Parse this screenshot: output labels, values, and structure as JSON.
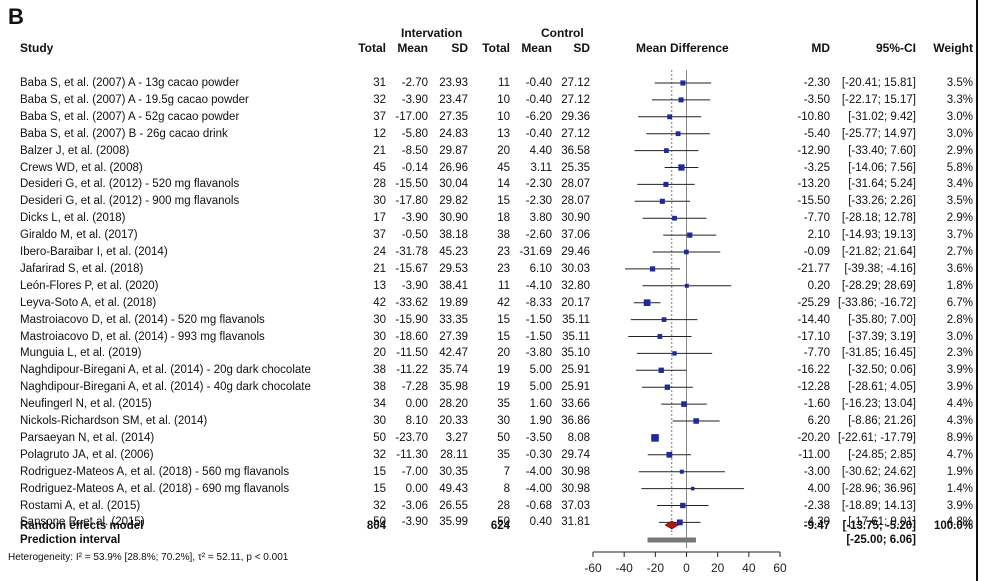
{
  "panel_label": "B",
  "headers": {
    "group_intervention": "Intervation",
    "group_control": "Control",
    "study": "Study",
    "total": "Total",
    "mean": "Mean",
    "sd": "SD",
    "total2": "Total",
    "mean2": "Mean",
    "sd2": "SD",
    "mean_difference": "Mean Difference",
    "md": "MD",
    "ci": "95%-CI",
    "weight": "Weight"
  },
  "rows": [
    {
      "study": "Baba S, et al. (2007) A - 13g cacao powder",
      "it": "31",
      "im": "-2.70",
      "isd": "23.93",
      "ct": "11",
      "cm": "-0.40",
      "csd": "27.12",
      "md": "-2.30",
      "ci": "[-20.41; 15.81]",
      "w": "3.5%",
      "mdv": -2.3,
      "lo": -20.41,
      "hi": 15.81,
      "wv": 3.5
    },
    {
      "study": "Baba S, et al. (2007) A - 19.5g cacao powder",
      "it": "32",
      "im": "-3.90",
      "isd": "23.47",
      "ct": "10",
      "cm": "-0.40",
      "csd": "27.12",
      "md": "-3.50",
      "ci": "[-22.17; 15.17]",
      "w": "3.3%",
      "mdv": -3.5,
      "lo": -22.17,
      "hi": 15.17,
      "wv": 3.3
    },
    {
      "study": "Baba S, et al. (2007) A - 52g cacao powder",
      "it": "37",
      "im": "-17.00",
      "isd": "27.35",
      "ct": "10",
      "cm": "-6.20",
      "csd": "29.36",
      "md": "-10.80",
      "ci": "[-31.02; 9.42]",
      "w": "3.0%",
      "mdv": -10.8,
      "lo": -31.02,
      "hi": 9.42,
      "wv": 3.0
    },
    {
      "study": "Baba S, et al. (2007) B - 26g cacao drink",
      "it": "12",
      "im": "-5.80",
      "isd": "24.83",
      "ct": "13",
      "cm": "-0.40",
      "csd": "27.12",
      "md": "-5.40",
      "ci": "[-25.77; 14.97]",
      "w": "3.0%",
      "mdv": -5.4,
      "lo": -25.77,
      "hi": 14.97,
      "wv": 3.0
    },
    {
      "study": "Balzer J, et al. (2008)",
      "it": "21",
      "im": "-8.50",
      "isd": "29.87",
      "ct": "20",
      "cm": "4.40",
      "csd": "36.58",
      "md": "-12.90",
      "ci": "[-33.40; 7.60]",
      "w": "2.9%",
      "mdv": -12.9,
      "lo": -33.4,
      "hi": 7.6,
      "wv": 2.9
    },
    {
      "study": "Crews WD, et al. (2008)",
      "it": "45",
      "im": "-0.14",
      "isd": "26.96",
      "ct": "45",
      "cm": "3.11",
      "csd": "25.35",
      "md": "-3.25",
      "ci": "[-14.06; 7.56]",
      "w": "5.8%",
      "mdv": -3.25,
      "lo": -14.06,
      "hi": 7.56,
      "wv": 5.8
    },
    {
      "study": "Desideri G, et al. (2012) - 520 mg flavanols",
      "it": "28",
      "im": "-15.50",
      "isd": "30.04",
      "ct": "14",
      "cm": "-2.30",
      "csd": "28.07",
      "md": "-13.20",
      "ci": "[-31.64; 5.24]",
      "w": "3.4%",
      "mdv": -13.2,
      "lo": -31.64,
      "hi": 5.24,
      "wv": 3.4
    },
    {
      "study": "Desideri G, et al. (2012) - 900 mg flavanols",
      "it": "30",
      "im": "-17.80",
      "isd": "29.82",
      "ct": "15",
      "cm": "-2.30",
      "csd": "28.07",
      "md": "-15.50",
      "ci": "[-33.26; 2.26]",
      "w": "3.5%",
      "mdv": -15.5,
      "lo": -33.26,
      "hi": 2.26,
      "wv": 3.5
    },
    {
      "study": "Dicks L, et al. (2018)",
      "it": "17",
      "im": "-3.90",
      "isd": "30.90",
      "ct": "18",
      "cm": "3.80",
      "csd": "30.90",
      "md": "-7.70",
      "ci": "[-28.18; 12.78]",
      "w": "2.9%",
      "mdv": -7.7,
      "lo": -28.18,
      "hi": 12.78,
      "wv": 2.9
    },
    {
      "study": "Giraldo M, et al. (2017)",
      "it": "37",
      "im": "-0.50",
      "isd": "38.18",
      "ct": "38",
      "cm": "-2.60",
      "csd": "37.06",
      "md": "2.10",
      "ci": "[-14.93; 19.13]",
      "w": "3.7%",
      "mdv": 2.1,
      "lo": -14.93,
      "hi": 19.13,
      "wv": 3.7
    },
    {
      "study": "Ibero-Baraibar I, et al. (2014)",
      "it": "24",
      "im": "-31.78",
      "isd": "45.23",
      "ct": "23",
      "cm": "-31.69",
      "csd": "29.46",
      "md": "-0.09",
      "ci": "[-21.82; 21.64]",
      "w": "2.7%",
      "mdv": -0.09,
      "lo": -21.82,
      "hi": 21.64,
      "wv": 2.7
    },
    {
      "study": "Jafarirad S, et al. (2018)",
      "it": "21",
      "im": "-15.67",
      "isd": "29.53",
      "ct": "23",
      "cm": "6.10",
      "csd": "30.03",
      "md": "-21.77",
      "ci": "[-39.38; -4.16]",
      "w": "3.6%",
      "mdv": -21.77,
      "lo": -39.38,
      "hi": -4.16,
      "wv": 3.6
    },
    {
      "study": "León-Flores P, et al. (2020)",
      "it": "13",
      "im": "-3.90",
      "isd": "38.41",
      "ct": "11",
      "cm": "-4.10",
      "csd": "32.80",
      "md": "0.20",
      "ci": "[-28.29; 28.69]",
      "w": "1.8%",
      "mdv": 0.2,
      "lo": -28.29,
      "hi": 28.69,
      "wv": 1.8
    },
    {
      "study": "Leyva-Soto A, et al. (2018)",
      "it": "42",
      "im": "-33.62",
      "isd": "19.89",
      "ct": "42",
      "cm": "-8.33",
      "csd": "20.17",
      "md": "-25.29",
      "ci": "[-33.86; -16.72]",
      "w": "6.7%",
      "mdv": -25.29,
      "lo": -33.86,
      "hi": -16.72,
      "wv": 6.7
    },
    {
      "study": "Mastroiacovo D, et al. (2014) - 520 mg flavanols",
      "it": "30",
      "im": "-15.90",
      "isd": "33.35",
      "ct": "15",
      "cm": "-1.50",
      "csd": "35.11",
      "md": "-14.40",
      "ci": "[-35.80; 7.00]",
      "w": "2.8%",
      "mdv": -14.4,
      "lo": -35.8,
      "hi": 7.0,
      "wv": 2.8
    },
    {
      "study": "Mastroiacovo D, et al. (2014) - 993 mg flavanols",
      "it": "30",
      "im": "-18.60",
      "isd": "27.39",
      "ct": "15",
      "cm": "-1.50",
      "csd": "35.11",
      "md": "-17.10",
      "ci": "[-37.39; 3.19]",
      "w": "3.0%",
      "mdv": -17.1,
      "lo": -37.39,
      "hi": 3.19,
      "wv": 3.0
    },
    {
      "study": "Munguia L, et al. (2019)",
      "it": "20",
      "im": "-11.50",
      "isd": "42.47",
      "ct": "20",
      "cm": "-3.80",
      "csd": "35.10",
      "md": "-7.70",
      "ci": "[-31.85; 16.45]",
      "w": "2.3%",
      "mdv": -7.7,
      "lo": -31.85,
      "hi": 16.45,
      "wv": 2.3
    },
    {
      "study": "Naghdipour-Biregani A, et al. (2014) - 20g dark chocolate",
      "it": "38",
      "im": "-11.22",
      "isd": "35.74",
      "ct": "19",
      "cm": "5.00",
      "csd": "25.91",
      "md": "-16.22",
      "ci": "[-32.50; 0.06]",
      "w": "3.9%",
      "mdv": -16.22,
      "lo": -32.5,
      "hi": 0.06,
      "wv": 3.9
    },
    {
      "study": "Naghdipour-Biregani A, et al. (2014) - 40g dark chocolate",
      "it": "38",
      "im": "-7.28",
      "isd": "35.98",
      "ct": "19",
      "cm": "5.00",
      "csd": "25.91",
      "md": "-12.28",
      "ci": "[-28.61; 4.05]",
      "w": "3.9%",
      "mdv": -12.28,
      "lo": -28.61,
      "hi": 4.05,
      "wv": 3.9
    },
    {
      "study": "Neufingerl N, et al. (2015)",
      "it": "34",
      "im": "0.00",
      "isd": "28.20",
      "ct": "35",
      "cm": "1.60",
      "csd": "33.66",
      "md": "-1.60",
      "ci": "[-16.23; 13.04]",
      "w": "4.4%",
      "mdv": -1.6,
      "lo": -16.23,
      "hi": 13.04,
      "wv": 4.4
    },
    {
      "study": "Nickols-Richardson SM, et al. (2014)",
      "it": "30",
      "im": "8.10",
      "isd": "20.33",
      "ct": "30",
      "cm": "1.90",
      "csd": "36.86",
      "md": "6.20",
      "ci": "[-8.86; 21.26]",
      "w": "4.3%",
      "mdv": 6.2,
      "lo": -8.86,
      "hi": 21.26,
      "wv": 4.3
    },
    {
      "study": "Parsaeyan N, et al. (2014)",
      "it": "50",
      "im": "-23.70",
      "isd": "3.27",
      "ct": "50",
      "cm": "-3.50",
      "csd": "8.08",
      "md": "-20.20",
      "ci": "[-22.61; -17.79]",
      "w": "8.9%",
      "mdv": -20.2,
      "lo": -22.61,
      "hi": -17.79,
      "wv": 8.9
    },
    {
      "study": "Polagruto JA, et al. (2006)",
      "it": "32",
      "im": "-11.30",
      "isd": "28.11",
      "ct": "35",
      "cm": "-0.30",
      "csd": "29.74",
      "md": "-11.00",
      "ci": "[-24.85; 2.85]",
      "w": "4.7%",
      "mdv": -11.0,
      "lo": -24.85,
      "hi": 2.85,
      "wv": 4.7
    },
    {
      "study": "Rodriguez-Mateos A, et al. (2018) - 560 mg flavanols",
      "it": "15",
      "im": "-7.00",
      "isd": "30.35",
      "ct": "7",
      "cm": "-4.00",
      "csd": "30.98",
      "md": "-3.00",
      "ci": "[-30.62; 24.62]",
      "w": "1.9%",
      "mdv": -3.0,
      "lo": -30.62,
      "hi": 24.62,
      "wv": 1.9
    },
    {
      "study": "Rodriguez-Mateos A, et al. (2018) - 690 mg flavanols",
      "it": "15",
      "im": "0.00",
      "isd": "49.43",
      "ct": "8",
      "cm": "-4.00",
      "csd": "30.98",
      "md": "4.00",
      "ci": "[-28.96; 36.96]",
      "w": "1.4%",
      "mdv": 4.0,
      "lo": -28.96,
      "hi": 36.96,
      "wv": 1.4
    },
    {
      "study": "Rostami A, et al. (2015)",
      "it": "32",
      "im": "-3.06",
      "isd": "26.55",
      "ct": "28",
      "cm": "-0.68",
      "csd": "37.03",
      "md": "-2.38",
      "ci": "[-18.89; 14.13]",
      "w": "3.9%",
      "mdv": -2.38,
      "lo": -18.89,
      "hi": 14.13,
      "wv": 3.9
    },
    {
      "study": "Sansone R, et al. (2015)",
      "it": "50",
      "im": "-3.90",
      "isd": "35.99",
      "ct": "50",
      "cm": "0.40",
      "csd": "31.81",
      "md": "-4.30",
      "ci": "[-17.61; 9.01]",
      "w": "4.8%",
      "mdv": -4.3,
      "lo": -17.61,
      "hi": 9.01,
      "wv": 4.8
    }
  ],
  "summary": {
    "re_label": "Random effects model",
    "re_total_int": "804",
    "re_total_ctrl": "624",
    "re_md": "-9.47",
    "re_ci": "[-13.75; -5.20]",
    "re_weight": "100.0%",
    "pi_label": "Prediction interval",
    "pi_ci": "[-25.00; 6.06]",
    "heterogeneity": "Heterogeneity: I² = 53.9% [28.8%; 70.2%], τ² = 52.11, p < 0.001"
  },
  "chart_data": {
    "type": "forest",
    "xlim": [
      -60,
      60
    ],
    "xticks": [
      -60,
      -40,
      -20,
      0,
      20,
      40,
      60
    ],
    "reference_line": 0,
    "summary_estimate": -9.47,
    "summary_ci": [
      -13.75,
      -5.2
    ],
    "prediction_interval": [
      -25.0,
      6.06
    ],
    "square_color": "#1f2a99",
    "diamond_color": "#b01818"
  }
}
